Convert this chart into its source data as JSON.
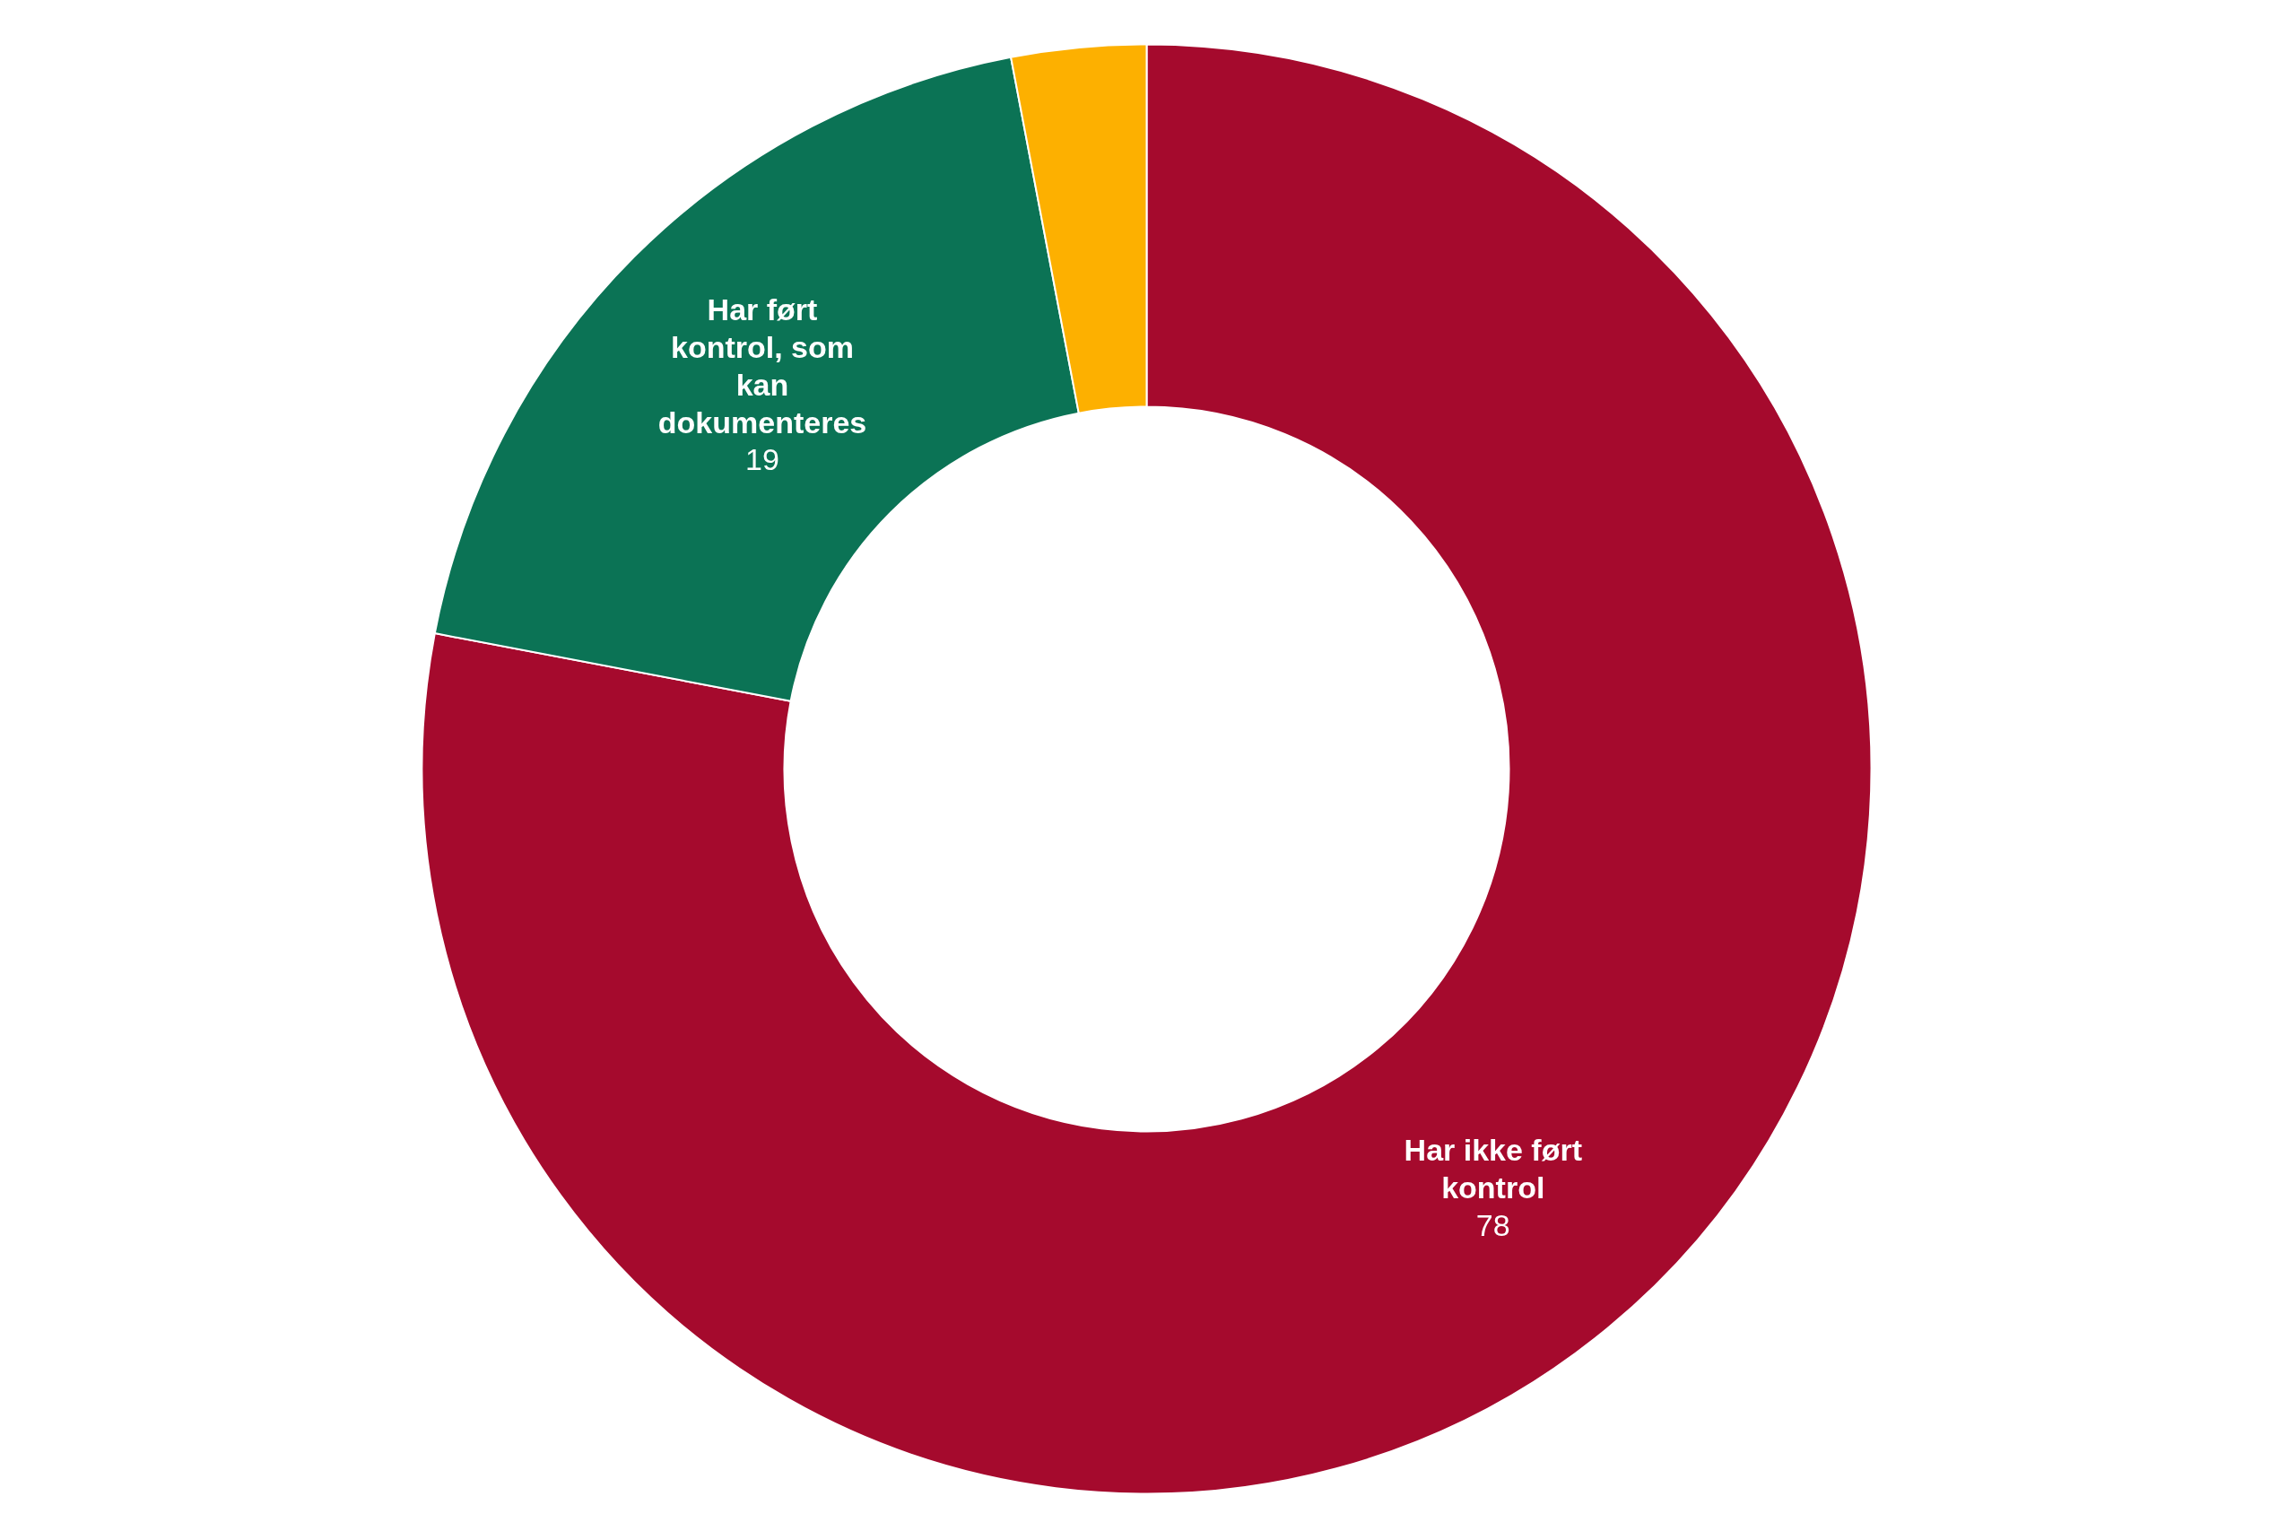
{
  "chart_data": {
    "type": "donut",
    "categories": [
      "Har ikke ført kontrol",
      "Har ført kontrol, som kan dokumenteres",
      null
    ],
    "values": [
      78,
      19,
      3
    ],
    "colors": [
      "#a50a2d",
      "#0b7355",
      "#fdb000"
    ],
    "value_labels": [
      "78",
      "19",
      null
    ]
  }
}
